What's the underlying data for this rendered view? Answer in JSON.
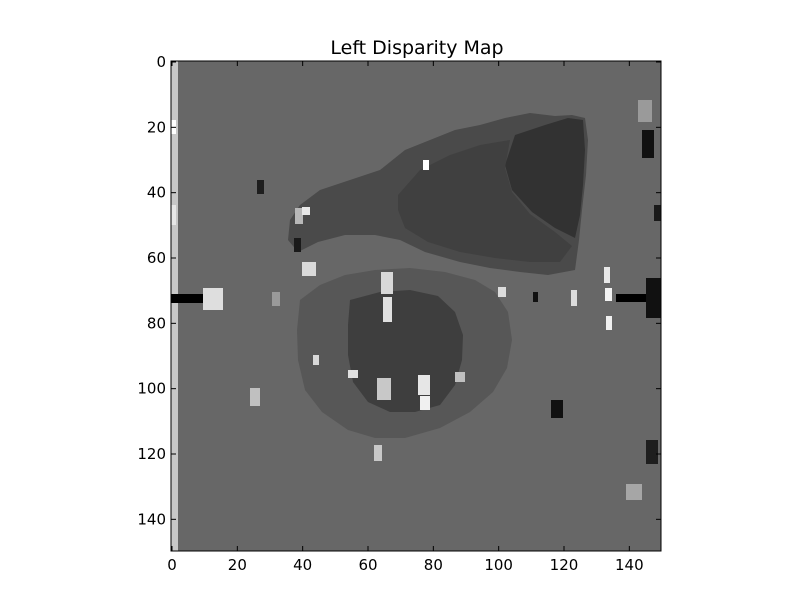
{
  "chart_data": {
    "type": "heatmap",
    "title": "Left Disparity Map",
    "colormap": "gray",
    "image_shape": [
      150,
      150
    ],
    "xlim": [
      0,
      149
    ],
    "ylim": [
      149,
      0
    ],
    "x_ticks": [
      0,
      20,
      40,
      60,
      80,
      100,
      120,
      140
    ],
    "y_ticks": [
      0,
      20,
      40,
      60,
      80,
      100,
      120,
      140
    ],
    "grid": false,
    "regions": [
      {
        "name": "background",
        "shade": "#676767"
      },
      {
        "name": "left-border-strip",
        "shade": "#c8c8c8"
      },
      {
        "name": "upper-right-blob",
        "shade": "#4a4a4a"
      },
      {
        "name": "upper-right-core",
        "shade": "#323232"
      },
      {
        "name": "lower-left-disk",
        "shade": "#575757"
      },
      {
        "name": "lower-left-core",
        "shade": "#3e3e3e"
      },
      {
        "name": "left-black-bar",
        "shade": "#000000"
      },
      {
        "name": "right-black-bar",
        "shade": "#000000"
      }
    ]
  }
}
